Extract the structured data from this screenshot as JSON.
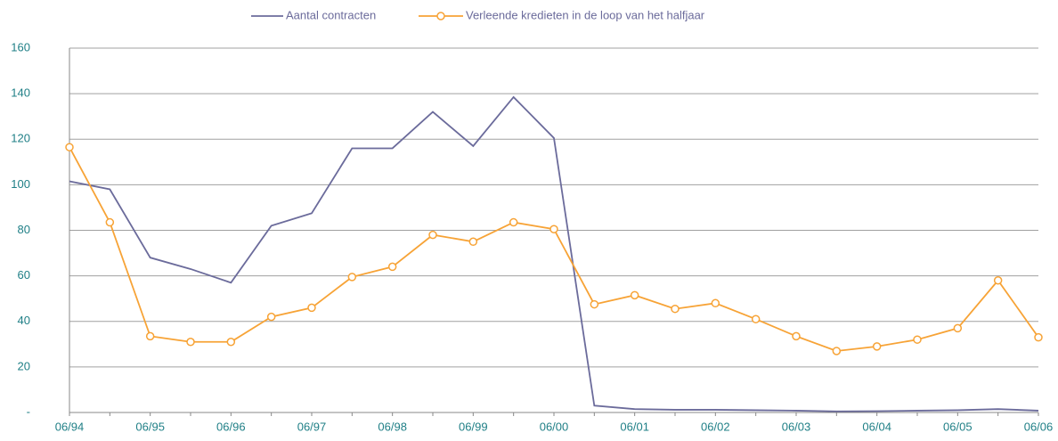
{
  "chart_data": {
    "type": "line",
    "categories": [
      "06/94",
      null,
      "06/95",
      null,
      "06/96",
      null,
      "06/97",
      null,
      "06/98",
      null,
      "06/99",
      null,
      "06/00",
      null,
      "06/01",
      null,
      "06/02",
      null,
      "06/03",
      null,
      "06/04",
      null,
      "06/05",
      null,
      "06/06"
    ],
    "series": [
      {
        "name": "Aantal contracten",
        "color": "#6b6b9b",
        "marker": false,
        "values": [
          101.5,
          98,
          68,
          63,
          57,
          82,
          87.5,
          116,
          116,
          132,
          117,
          138.5,
          120.5,
          3,
          1.5,
          1.2,
          1.2,
          1,
          0.8,
          0.5,
          0.6,
          0.8,
          1,
          1.5,
          0.8
        ]
      },
      {
        "name": "Verleende kredieten in de loop van het halfjaar",
        "color": "#f7a336",
        "marker": true,
        "values": [
          116.5,
          83.5,
          33.5,
          31,
          31,
          42,
          46,
          59.5,
          64,
          78,
          75,
          83.5,
          80.5,
          47.5,
          51.5,
          45.5,
          48,
          41,
          33.5,
          27,
          29,
          32,
          37,
          58,
          33
        ]
      }
    ],
    "ylim": [
      0,
      160
    ],
    "yticks": [
      {
        "value": 0,
        "label": "-"
      },
      20,
      40,
      60,
      80,
      100,
      120,
      140,
      160
    ],
    "grid": true,
    "legend": "top"
  }
}
